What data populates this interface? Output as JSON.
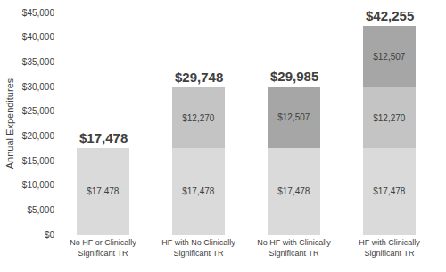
{
  "chart_data": {
    "type": "bar",
    "stacked": true,
    "data_labels": true,
    "grid": false,
    "y_label": "Annual Expenditures",
    "categories": [
      "No HF or Clinically Significant TR",
      "HF with No Clinically Significant TR",
      "No HF with Clinically Significant TR",
      "HF with Clinically Significant TR"
    ],
    "series": [
      {
        "color": "#dadada",
        "values": [
          17478,
          17478,
          17478,
          17478
        ],
        "value_labels": [
          "$17,478",
          "$17,478",
          "$17,478",
          "$17,478"
        ]
      },
      {
        "color": "#c4c4c4",
        "values": [
          null,
          12270,
          null,
          12270
        ],
        "value_labels": [
          null,
          "$12,270",
          null,
          "$12,270"
        ]
      },
      {
        "color": "#a6a6a6",
        "values": [
          null,
          null,
          12507,
          12507
        ],
        "value_labels": [
          null,
          null,
          "$12,507",
          "$12,507"
        ]
      }
    ],
    "total_labels": [
      "$17,478",
      "$29,748",
      "$29,985",
      "$42,255"
    ],
    "ylim": [
      0,
      45000
    ],
    "yticks": [
      {
        "value": 0,
        "label": "$0"
      },
      {
        "value": 5000,
        "label": "$5,000"
      },
      {
        "value": 10000,
        "label": "$10,000"
      },
      {
        "value": 15000,
        "label": "$15,000"
      },
      {
        "value": 20000,
        "label": "$20,000"
      },
      {
        "value": 25000,
        "label": "$25,000"
      },
      {
        "value": 30000,
        "label": "$30,000"
      },
      {
        "value": 35000,
        "label": "$35,000"
      },
      {
        "value": 40000,
        "label": "$40,000"
      },
      {
        "value": 45000,
        "label": "$45,000"
      }
    ]
  }
}
